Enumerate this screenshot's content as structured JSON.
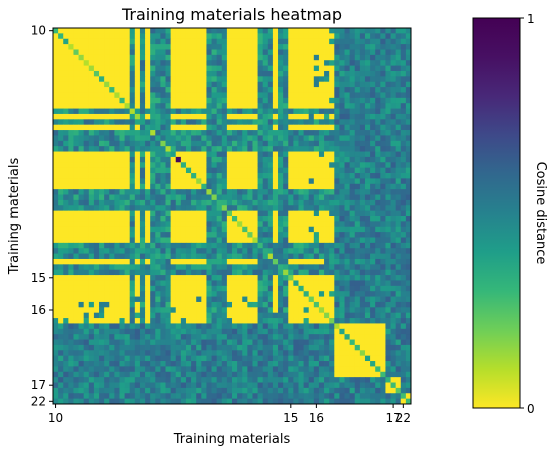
{
  "chart_data": {
    "type": "heatmap",
    "title": "Training materials heatmap",
    "xlabel": "Training materials",
    "ylabel": "Training materials",
    "colorbar_label": "Cosine distance",
    "colorbar_ticks": [
      "0",
      "1"
    ],
    "value_range": [
      0,
      1
    ],
    "colormap": "viridis_r",
    "x_tick_labels": [
      "10",
      "15",
      "16",
      "17",
      "22"
    ],
    "y_tick_labels": [
      "10",
      "15",
      "16",
      "17",
      "22"
    ],
    "grid_size": 70,
    "blocks": [
      {
        "label": "10",
        "start": 0,
        "end": 50
      },
      {
        "label": "15",
        "start": 50,
        "end": 55
      },
      {
        "label": "16",
        "start": 55,
        "end": 65
      },
      {
        "label": "17",
        "start": 65,
        "end": 68
      },
      {
        "label": "22",
        "start": 68,
        "end": 70
      }
    ],
    "grid": true,
    "legend": "colorbar-right"
  }
}
